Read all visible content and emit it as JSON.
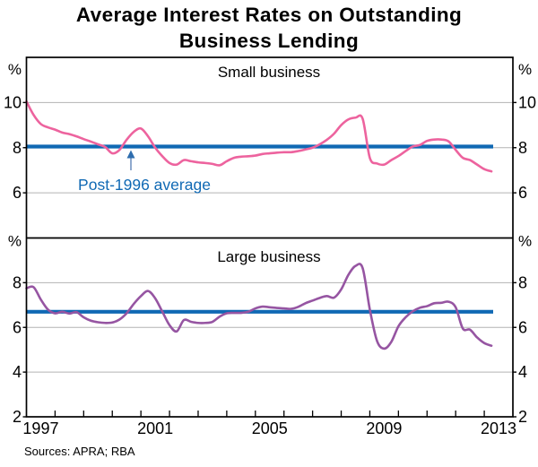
{
  "title": {
    "line1": "Average Interest Rates on Outstanding",
    "line2": "Business Lending"
  },
  "sources": "Sources: APRA; RBA",
  "colors": {
    "pink": "#ED639E",
    "purple": "#9655A2",
    "blue": "#1069B4",
    "annotation_text": "#1069B4",
    "arrow_stem": "#8FA9CE",
    "arrow_head": "#2E6DAE",
    "gridline": "#B3B3B3",
    "frame": "#000000"
  },
  "chart_data": {
    "type": "line",
    "x_axis": {
      "range": [
        1997,
        2014
      ],
      "label_years": [
        1997,
        2001,
        2005,
        2009,
        2013
      ],
      "minor_tick_start": 1998,
      "minor_tick_end": 2013
    },
    "panels": [
      {
        "label": "Small business",
        "unit": "%",
        "ylim": [
          4,
          12
        ],
        "gridline_values": [
          6,
          8,
          10
        ],
        "ytick_labels": [
          10,
          8,
          6
        ],
        "average": {
          "value": 8.05,
          "label": "Post-1996 average"
        },
        "series": {
          "name": "Small business lending rate",
          "color": "#ED639E",
          "points": [
            [
              1997.0,
              10.05
            ],
            [
              1997.25,
              9.45
            ],
            [
              1997.5,
              9.05
            ],
            [
              1997.75,
              8.9
            ],
            [
              1998.0,
              8.8
            ],
            [
              1998.25,
              8.67
            ],
            [
              1998.5,
              8.6
            ],
            [
              1998.75,
              8.5
            ],
            [
              1999.0,
              8.38
            ],
            [
              1999.25,
              8.27
            ],
            [
              1999.5,
              8.15
            ],
            [
              1999.75,
              8.03
            ],
            [
              2000.0,
              7.75
            ],
            [
              2000.25,
              7.9
            ],
            [
              2000.5,
              8.35
            ],
            [
              2000.75,
              8.7
            ],
            [
              2001.0,
              8.85
            ],
            [
              2001.25,
              8.5
            ],
            [
              2001.5,
              8.0
            ],
            [
              2001.75,
              7.62
            ],
            [
              2002.0,
              7.32
            ],
            [
              2002.25,
              7.25
            ],
            [
              2002.5,
              7.45
            ],
            [
              2002.75,
              7.4
            ],
            [
              2003.0,
              7.35
            ],
            [
              2003.25,
              7.32
            ],
            [
              2003.5,
              7.28
            ],
            [
              2003.75,
              7.22
            ],
            [
              2004.0,
              7.4
            ],
            [
              2004.25,
              7.55
            ],
            [
              2004.5,
              7.6
            ],
            [
              2004.75,
              7.62
            ],
            [
              2005.0,
              7.65
            ],
            [
              2005.25,
              7.72
            ],
            [
              2005.5,
              7.75
            ],
            [
              2005.75,
              7.78
            ],
            [
              2006.0,
              7.8
            ],
            [
              2006.25,
              7.8
            ],
            [
              2006.5,
              7.85
            ],
            [
              2006.75,
              7.92
            ],
            [
              2007.0,
              8.0
            ],
            [
              2007.25,
              8.15
            ],
            [
              2007.5,
              8.35
            ],
            [
              2007.75,
              8.62
            ],
            [
              2008.0,
              9.0
            ],
            [
              2008.25,
              9.25
            ],
            [
              2008.5,
              9.33
            ],
            [
              2008.75,
              9.28
            ],
            [
              2009.0,
              7.55
            ],
            [
              2009.25,
              7.3
            ],
            [
              2009.5,
              7.25
            ],
            [
              2009.75,
              7.45
            ],
            [
              2010.0,
              7.63
            ],
            [
              2010.25,
              7.85
            ],
            [
              2010.5,
              8.05
            ],
            [
              2010.75,
              8.12
            ],
            [
              2011.0,
              8.3
            ],
            [
              2011.25,
              8.36
            ],
            [
              2011.5,
              8.36
            ],
            [
              2011.75,
              8.28
            ],
            [
              2012.0,
              7.9
            ],
            [
              2012.25,
              7.55
            ],
            [
              2012.5,
              7.45
            ],
            [
              2012.75,
              7.25
            ],
            [
              2013.0,
              7.05
            ],
            [
              2013.25,
              6.95
            ]
          ]
        }
      },
      {
        "label": "Large business",
        "unit": "%",
        "ylim": [
          2,
          10
        ],
        "gridline_values": [
          4,
          6,
          8
        ],
        "ytick_labels": [
          8,
          6,
          4,
          2
        ],
        "average": {
          "value": 6.7,
          "label": "Post-1996 average"
        },
        "series": {
          "name": "Large business lending rate",
          "color": "#9655A2",
          "points": [
            [
              1997.0,
              7.75
            ],
            [
              1997.25,
              7.8
            ],
            [
              1997.5,
              7.25
            ],
            [
              1997.75,
              6.8
            ],
            [
              1998.0,
              6.63
            ],
            [
              1998.25,
              6.7
            ],
            [
              1998.5,
              6.62
            ],
            [
              1998.75,
              6.68
            ],
            [
              1999.0,
              6.45
            ],
            [
              1999.25,
              6.3
            ],
            [
              1999.5,
              6.23
            ],
            [
              1999.75,
              6.2
            ],
            [
              2000.0,
              6.22
            ],
            [
              2000.25,
              6.35
            ],
            [
              2000.5,
              6.63
            ],
            [
              2000.75,
              7.05
            ],
            [
              2001.0,
              7.4
            ],
            [
              2001.25,
              7.63
            ],
            [
              2001.5,
              7.3
            ],
            [
              2001.75,
              6.7
            ],
            [
              2002.0,
              6.1
            ],
            [
              2002.25,
              5.82
            ],
            [
              2002.5,
              6.33
            ],
            [
              2002.75,
              6.25
            ],
            [
              2003.0,
              6.2
            ],
            [
              2003.25,
              6.2
            ],
            [
              2003.5,
              6.25
            ],
            [
              2003.75,
              6.48
            ],
            [
              2004.0,
              6.63
            ],
            [
              2004.25,
              6.65
            ],
            [
              2004.5,
              6.65
            ],
            [
              2004.75,
              6.7
            ],
            [
              2005.0,
              6.85
            ],
            [
              2005.25,
              6.93
            ],
            [
              2005.5,
              6.9
            ],
            [
              2005.75,
              6.87
            ],
            [
              2006.0,
              6.85
            ],
            [
              2006.25,
              6.83
            ],
            [
              2006.5,
              6.92
            ],
            [
              2006.75,
              7.08
            ],
            [
              2007.0,
              7.2
            ],
            [
              2007.25,
              7.32
            ],
            [
              2007.5,
              7.4
            ],
            [
              2007.75,
              7.33
            ],
            [
              2008.0,
              7.7
            ],
            [
              2008.25,
              8.35
            ],
            [
              2008.5,
              8.75
            ],
            [
              2008.75,
              8.65
            ],
            [
              2009.0,
              6.8
            ],
            [
              2009.25,
              5.4
            ],
            [
              2009.5,
              5.05
            ],
            [
              2009.75,
              5.35
            ],
            [
              2010.0,
              6.05
            ],
            [
              2010.25,
              6.45
            ],
            [
              2010.5,
              6.72
            ],
            [
              2010.75,
              6.88
            ],
            [
              2011.0,
              6.95
            ],
            [
              2011.25,
              7.08
            ],
            [
              2011.5,
              7.1
            ],
            [
              2011.75,
              7.15
            ],
            [
              2012.0,
              6.9
            ],
            [
              2012.25,
              5.95
            ],
            [
              2012.5,
              5.9
            ],
            [
              2012.75,
              5.55
            ],
            [
              2013.0,
              5.3
            ],
            [
              2013.25,
              5.18
            ]
          ]
        }
      }
    ]
  }
}
